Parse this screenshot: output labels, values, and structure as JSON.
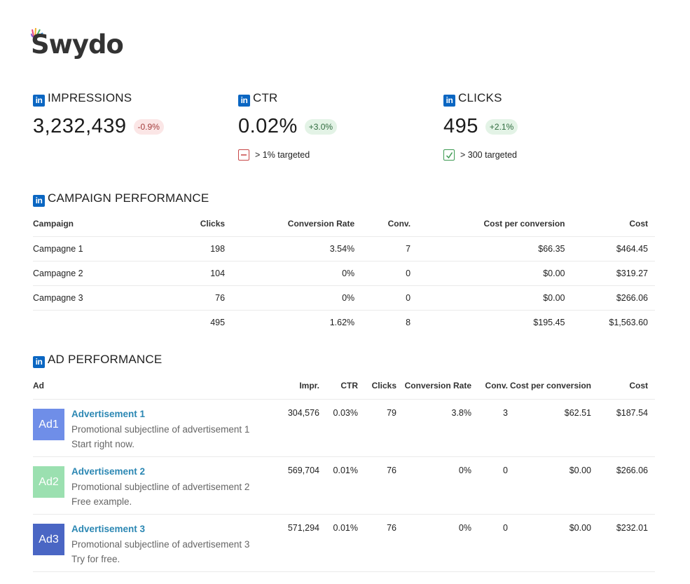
{
  "brand": {
    "name": "Swydo"
  },
  "icons": {
    "linkedin": "in",
    "target_miss": "minus-box-icon",
    "target_hit": "check-box-icon"
  },
  "colors": {
    "linkedin": "#0a66c2",
    "negative": "#c74747",
    "positive": "#3c9a52",
    "link": "#2b87b3"
  },
  "kpis": [
    {
      "title": "IMPRESSIONS",
      "value": "3,232,439",
      "change": "-0.9%",
      "trend": "negative",
      "target": null
    },
    {
      "title": "CTR",
      "value": "0.02%",
      "change": "+3.0%",
      "trend": "positive",
      "target": "> 1% targeted"
    },
    {
      "title": "CLICKS",
      "value": "495",
      "change": "+2.1%",
      "trend": "positive",
      "target": "> 300 targeted"
    }
  ],
  "campaign_performance": {
    "title": "CAMPAIGN PERFORMANCE",
    "columns": [
      "Campaign",
      "Clicks",
      "Conversion Rate",
      "Conv.",
      "Cost per conversion",
      "Cost"
    ],
    "rows": [
      [
        "Campagne 1",
        "198",
        "3.54%",
        "7",
        "$66.35",
        "$464.45"
      ],
      [
        "Campagne 2",
        "104",
        "0%",
        "0",
        "$0.00",
        "$319.27"
      ],
      [
        "Campagne 3",
        "76",
        "0%",
        "0",
        "$0.00",
        "$266.06"
      ]
    ],
    "totals": [
      "",
      "495",
      "1.62%",
      "8",
      "$195.45",
      "$1,563.60"
    ]
  },
  "ad_performance": {
    "title": "AD PERFORMANCE",
    "columns": [
      "Ad",
      "Impr.",
      "CTR",
      "Clicks",
      "Conversion Rate",
      "Conv.",
      "Cost per conversion",
      "Cost"
    ],
    "rows": [
      {
        "thumb": "Ad1",
        "thumb_color": "#6f8ee8",
        "name": "Advertisement 1",
        "desc1": "Promotional subjectline of advertisement 1",
        "desc2": "Start right now.",
        "impr": "304,576",
        "ctr": "0.03%",
        "clicks": "79",
        "conv_rate": "3.8%",
        "conv": "3",
        "cpc": "$62.51",
        "cost": "$187.54"
      },
      {
        "thumb": "Ad2",
        "thumb_color": "#9be0b0",
        "name": "Advertisement 2",
        "desc1": "Promotional subjectline of advertisement 2",
        "desc2": "Free example.",
        "impr": "569,704",
        "ctr": "0.01%",
        "clicks": "76",
        "conv_rate": "0%",
        "conv": "0",
        "cpc": "$0.00",
        "cost": "$266.06"
      },
      {
        "thumb": "Ad3",
        "thumb_color": "#4a66c4",
        "name": "Advertisement 3",
        "desc1": "Promotional subjectline of advertisement 3",
        "desc2": "Try for free.",
        "impr": "571,294",
        "ctr": "0.01%",
        "clicks": "76",
        "conv_rate": "0%",
        "conv": "0",
        "cpc": "$0.00",
        "cost": "$232.01"
      }
    ]
  }
}
